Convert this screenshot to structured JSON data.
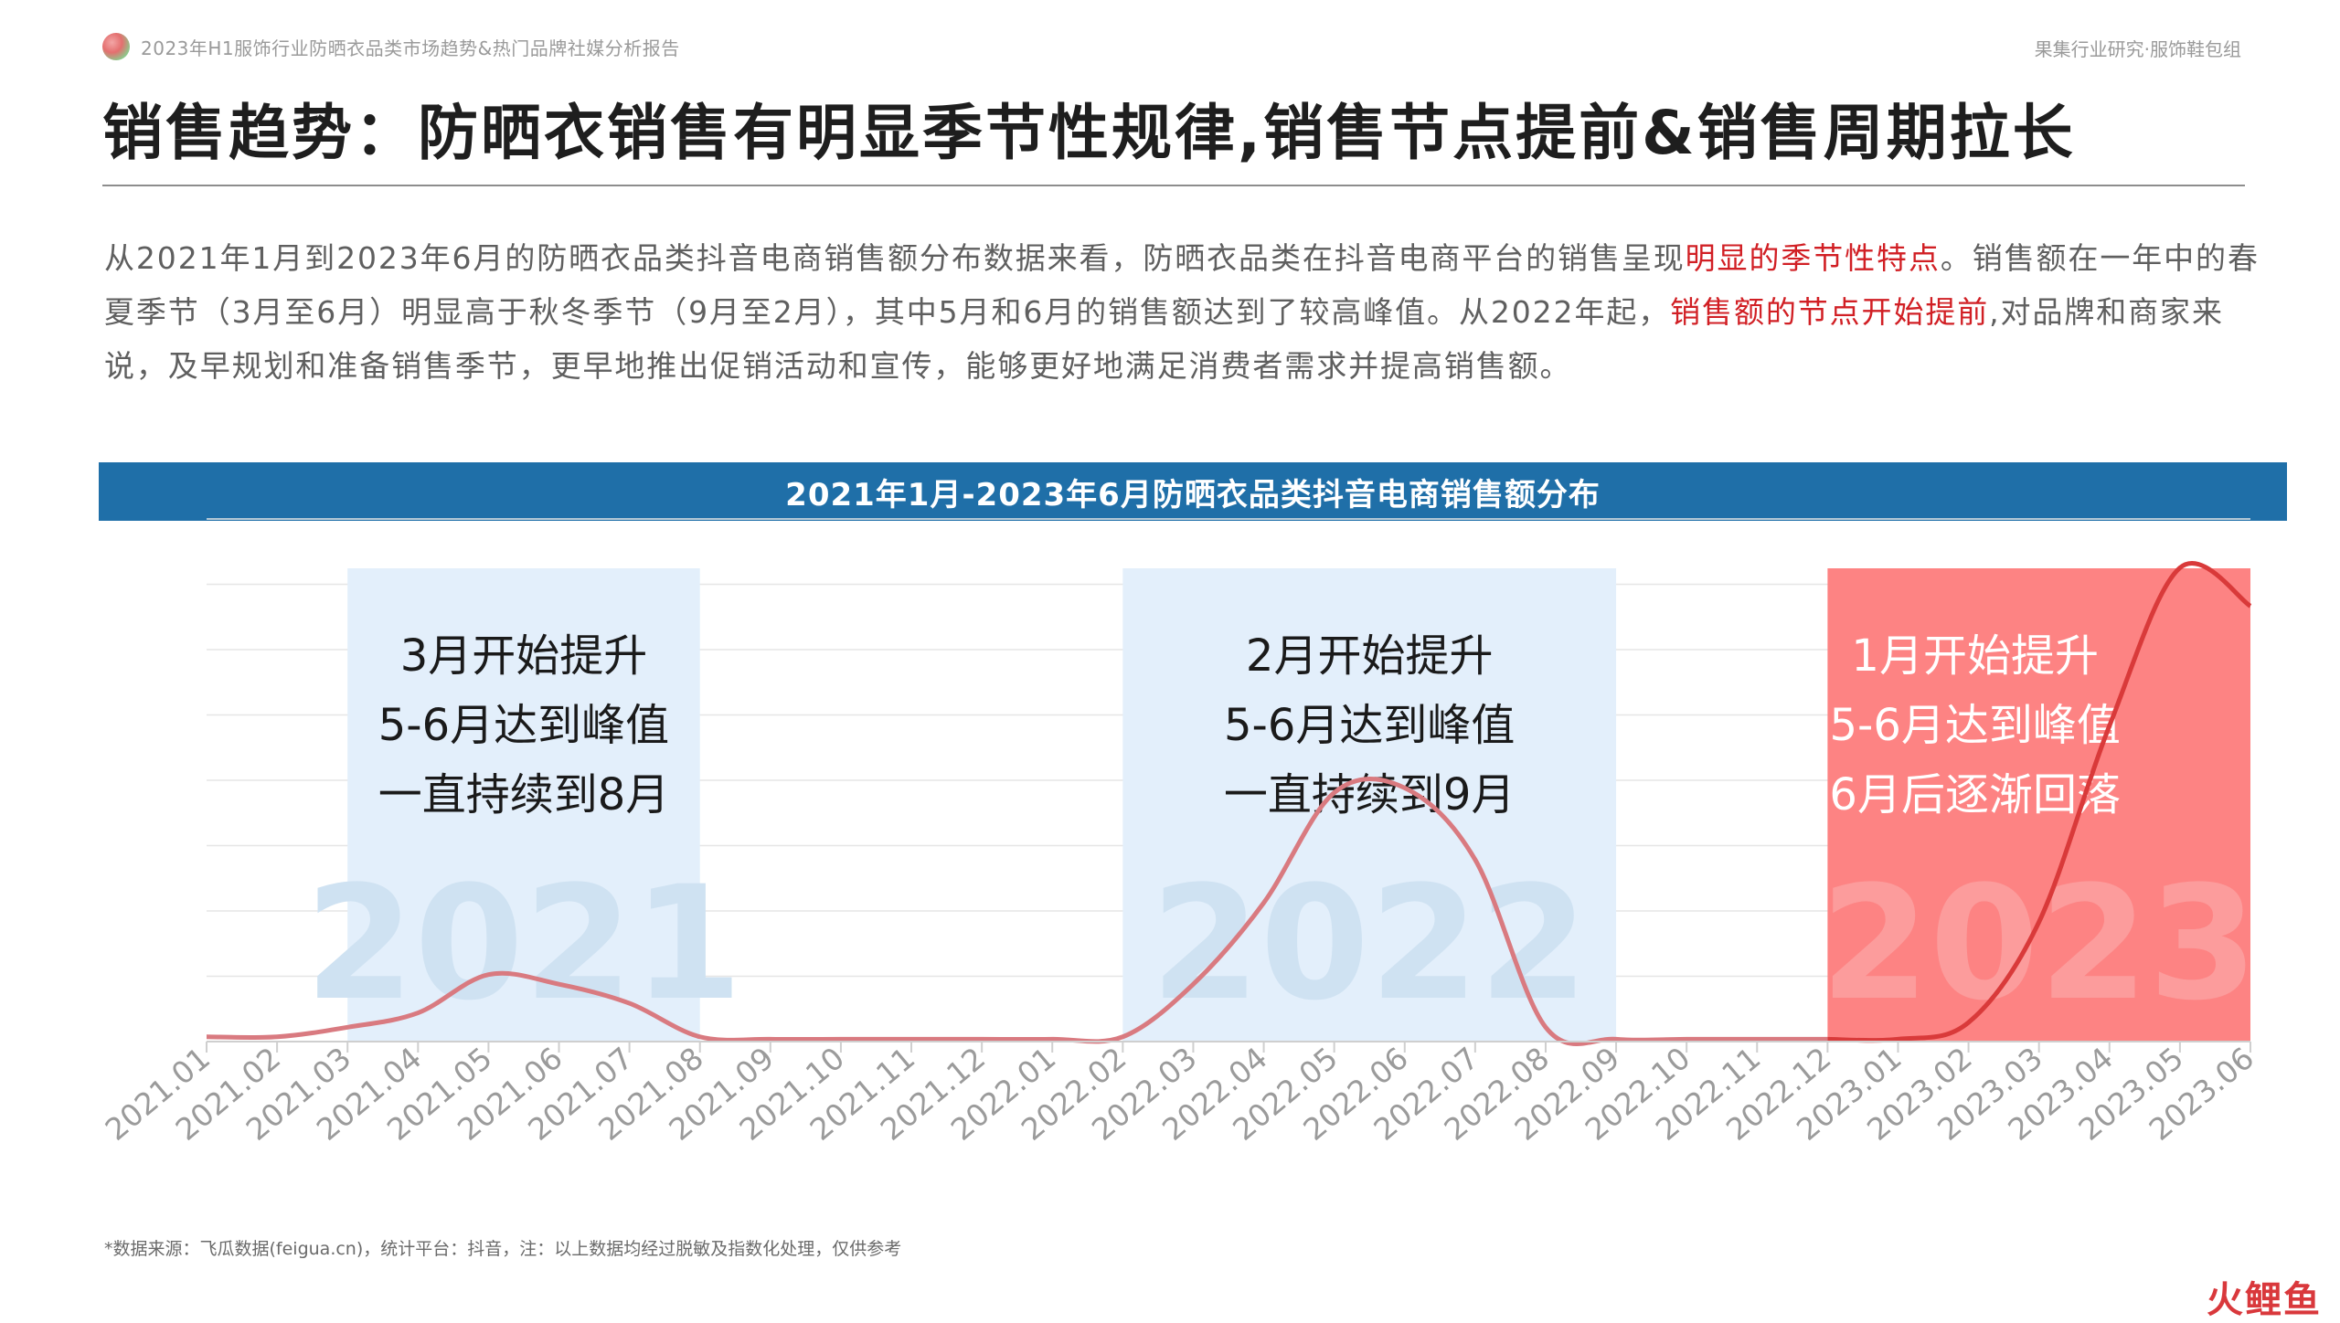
{
  "header": {
    "report_name": "2023年H1服饰行业防晒衣品类市场趋势&热门品牌社媒分析报告",
    "team": "果集行业研究·服饰鞋包组"
  },
  "page_title": "销售趋势：防晒衣销售有明显季节性规律,销售节点提前&销售周期拉长",
  "summary": {
    "part1": "从2021年1月到2023年6月的防晒衣品类抖音电商销售额分布数据来看，防晒衣品类在抖音电商平台的销售呈现",
    "highlight1": "明显的季节性特点",
    "part2": "。销售额在一年中的春夏季节（3月至6月）明显高于秋冬季节（9月至2月），其中5月和6月的销售额达到了较高峰值。从2022年起，",
    "highlight2": "销售额的节点开始提前",
    "part3": ",对品牌和商家来说，及早规划和准备销售季节，更早地推出促销活动和宣传，能够更好地满足消费者需求并提高销售额。"
  },
  "chart_data": {
    "type": "line",
    "title": "2021年1月-2023年6月防晒衣品类抖音电商销售额分布",
    "categories": [
      "2021.01",
      "2021.02",
      "2021.03",
      "2021.04",
      "2021.05",
      "2021.06",
      "2021.07",
      "2021.08",
      "2021.09",
      "2021.10",
      "2021.11",
      "2021.12",
      "2022.01",
      "2022.02",
      "2022.03",
      "2022.04",
      "2022.05",
      "2022.06",
      "2022.07",
      "2022.08",
      "2022.09",
      "2022.10",
      "2022.11",
      "2022.12",
      "2023.01",
      "2023.02",
      "2023.03",
      "2023.04",
      "2023.05",
      "2023.06"
    ],
    "values": [
      1,
      1,
      3,
      6,
      14,
      12,
      8,
      1,
      0.5,
      0.5,
      0.5,
      0.5,
      0.5,
      1,
      12,
      29,
      52,
      53,
      38,
      3,
      0.5,
      0.5,
      0.5,
      0.5,
      0.5,
      4,
      25,
      66,
      99,
      91
    ],
    "ylim": [
      0,
      105
    ],
    "grid": true,
    "series_colors": {
      "line": "#d93a3a",
      "line_faded": "#d97a80"
    },
    "highlights": [
      {
        "year": "2021",
        "start": "2021.03",
        "end": "2021.08",
        "color": "#e3effb",
        "text_color": "#1a1a1a",
        "watermark_color": "#cfe2f2",
        "lines": [
          "3月开始提升",
          "5-6月达到峰值",
          "一直持续到8月"
        ]
      },
      {
        "year": "2022",
        "start": "2022.02",
        "end": "2022.09",
        "color": "#e3effb",
        "text_color": "#1a1a1a",
        "watermark_color": "#cfe2f2",
        "lines": [
          "2月开始提升",
          "5-6月达到峰值",
          "一直持续到9月"
        ]
      },
      {
        "year": "2023",
        "start": "2022.12",
        "end": "2023.06",
        "color": "#fd8383",
        "text_color": "#ffffff",
        "watermark_color": "#fc9c9c",
        "lines": [
          "1月开始提升",
          "5-6月达到峰值",
          "6月后逐渐回落"
        ]
      }
    ]
  },
  "source_note": "*数据来源：飞瓜数据(feigua.cn)，统计平台：抖音，注：以上数据均经过脱敏及指数化处理，仅供参考",
  "brand": "火鲤鱼"
}
